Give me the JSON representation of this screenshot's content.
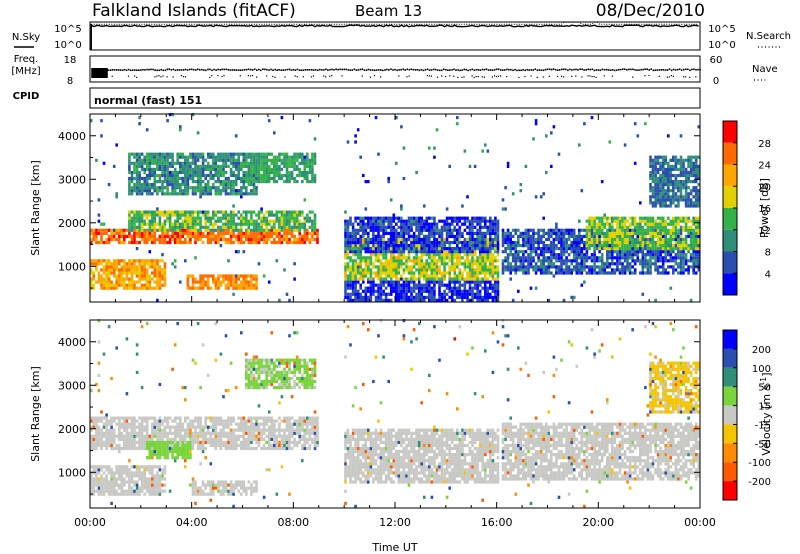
{
  "header": {
    "title": "Falkland Islands (fitACF)",
    "beam": "Beam 13",
    "date": "08/Dec/2010"
  },
  "side_labels": {
    "nsky": "N.Sky",
    "freq": "Freq.",
    "freq_unit": "[MHz]",
    "cpid": "CPID",
    "nsearch": "N.Search",
    "nave": "Nave"
  },
  "cpid_name": "normal (fast) 151",
  "chart_data": [
    {
      "type": "line",
      "name": "noise",
      "left_axis": {
        "label": "N.Sky",
        "ticks": [
          "10^5",
          "10^0"
        ],
        "log": true
      },
      "right_axis": {
        "label": "N.Search",
        "ticks": [
          "10^5",
          "10^0"
        ],
        "log": true
      },
      "series": [
        {
          "name": "N.Sky",
          "level_log10": 4.3
        },
        {
          "name": "N.Search",
          "level_log10": 4.6,
          "spikes_utc": [
            [
              18.6,
              19.3
            ],
            [
              19.8,
              20.0
            ]
          ]
        }
      ],
      "gap_utc": [
        0.0,
        0.05
      ]
    },
    {
      "type": "scatter",
      "name": "frequency",
      "left_axis": {
        "label": "Freq. [MHz]",
        "ticks": [
          18,
          8
        ],
        "range": [
          8,
          18
        ]
      },
      "right_axis": {
        "label": "Nave",
        "ticks": [
          60,
          0
        ],
        "range": [
          0,
          60
        ]
      },
      "series": [
        {
          "name": "Freq.",
          "value": 13
        },
        {
          "name": "Nave",
          "value": 14
        }
      ]
    },
    {
      "type": "heatmap",
      "name": "power",
      "title": "",
      "xlabel": "",
      "ylabel": "Slant Range [km]",
      "xlim_utc": [
        0,
        24
      ],
      "ylim_km": [
        180,
        4500
      ],
      "yticks": [
        1000,
        2000,
        3000,
        4000
      ],
      "colorbar": {
        "label": "Power [dB]",
        "ticks": [
          28,
          24,
          20,
          16,
          12,
          8,
          4
        ],
        "colors": [
          "#ff0000",
          "#ff6a00",
          "#ffa600",
          "#e2d000",
          "#34b24a",
          "#2f8f78",
          "#2b4fb0",
          "#0000ff"
        ]
      },
      "data_gaps_utc": [
        [
          8.95,
          9.9
        ],
        [
          16.0,
          16.1
        ]
      ],
      "regions": [
        {
          "t": [
            0.0,
            9.0
          ],
          "r": [
            1450,
            1850
          ],
          "p": 26
        },
        {
          "t": [
            1.5,
            8.8
          ],
          "r": [
            1750,
            2250
          ],
          "p": 14
        },
        {
          "t": [
            0.0,
            3.0
          ],
          "r": [
            400,
            1150
          ],
          "p": 22
        },
        {
          "t": [
            3.8,
            6.5
          ],
          "r": [
            450,
            800
          ],
          "p": 24
        },
        {
          "t": [
            1.5,
            6.5
          ],
          "r": [
            2600,
            3600
          ],
          "p": 10
        },
        {
          "t": [
            6.0,
            8.8
          ],
          "r": [
            2900,
            3600
          ],
          "p": 12
        },
        {
          "t": [
            9.9,
            16.0
          ],
          "r": [
            650,
            1600
          ],
          "p": 17
        },
        {
          "t": [
            9.9,
            16.0
          ],
          "r": [
            1300,
            2100
          ],
          "p": 5
        },
        {
          "t": [
            9.9,
            16.0
          ],
          "r": [
            180,
            650
          ],
          "p": 4
        },
        {
          "t": [
            16.1,
            24.0
          ],
          "r": [
            800,
            1800
          ],
          "p": 6
        },
        {
          "t": [
            19.5,
            24.0
          ],
          "r": [
            1350,
            2100
          ],
          "p": 15
        },
        {
          "t": [
            22.0,
            24.0
          ],
          "r": [
            2300,
            3500
          ],
          "p": 8
        }
      ]
    },
    {
      "type": "heatmap",
      "name": "velocity",
      "title": "",
      "xlabel": "Time UT",
      "ylabel": "Slant Range [km]",
      "xlim_utc": [
        0,
        24
      ],
      "ylim_km": [
        180,
        4500
      ],
      "yticks": [
        1000,
        2000,
        3000,
        4000
      ],
      "xticks": [
        "00:00",
        "04:00",
        "08:00",
        "12:00",
        "16:00",
        "20:00",
        "00:00"
      ],
      "colorbar": {
        "label": "Velocity [m s^-1]",
        "ticks": [
          200,
          100,
          50,
          15,
          -15,
          -50,
          -100,
          -200
        ],
        "colors": [
          "#0000ff",
          "#2b4fb0",
          "#2f8f78",
          "#7ad43c",
          "#c8c8c4",
          "#f5c400",
          "#ff8c00",
          "#ff5a00",
          "#ff0000"
        ]
      },
      "data_gaps_utc": [
        [
          8.95,
          9.9
        ],
        [
          16.0,
          16.1
        ]
      ],
      "regions": [
        {
          "t": [
            0.0,
            9.0
          ],
          "r": [
            1450,
            2250
          ],
          "v": 0
        },
        {
          "t": [
            0.0,
            3.0
          ],
          "r": [
            400,
            1150
          ],
          "v": 0
        },
        {
          "t": [
            4.0,
            6.5
          ],
          "r": [
            450,
            800
          ],
          "v": 0
        },
        {
          "t": [
            2.2,
            4.0
          ],
          "r": [
            1300,
            1700
          ],
          "v": 25
        },
        {
          "t": [
            6.0,
            8.8
          ],
          "r": [
            2900,
            3600
          ],
          "v": 20
        },
        {
          "t": [
            9.9,
            16.0
          ],
          "r": [
            700,
            2000
          ],
          "v": 0
        },
        {
          "t": [
            16.1,
            24.0
          ],
          "r": [
            800,
            2100
          ],
          "v": 0
        },
        {
          "t": [
            22.0,
            24.0
          ],
          "r": [
            2300,
            3500
          ],
          "v": -20
        }
      ]
    }
  ]
}
